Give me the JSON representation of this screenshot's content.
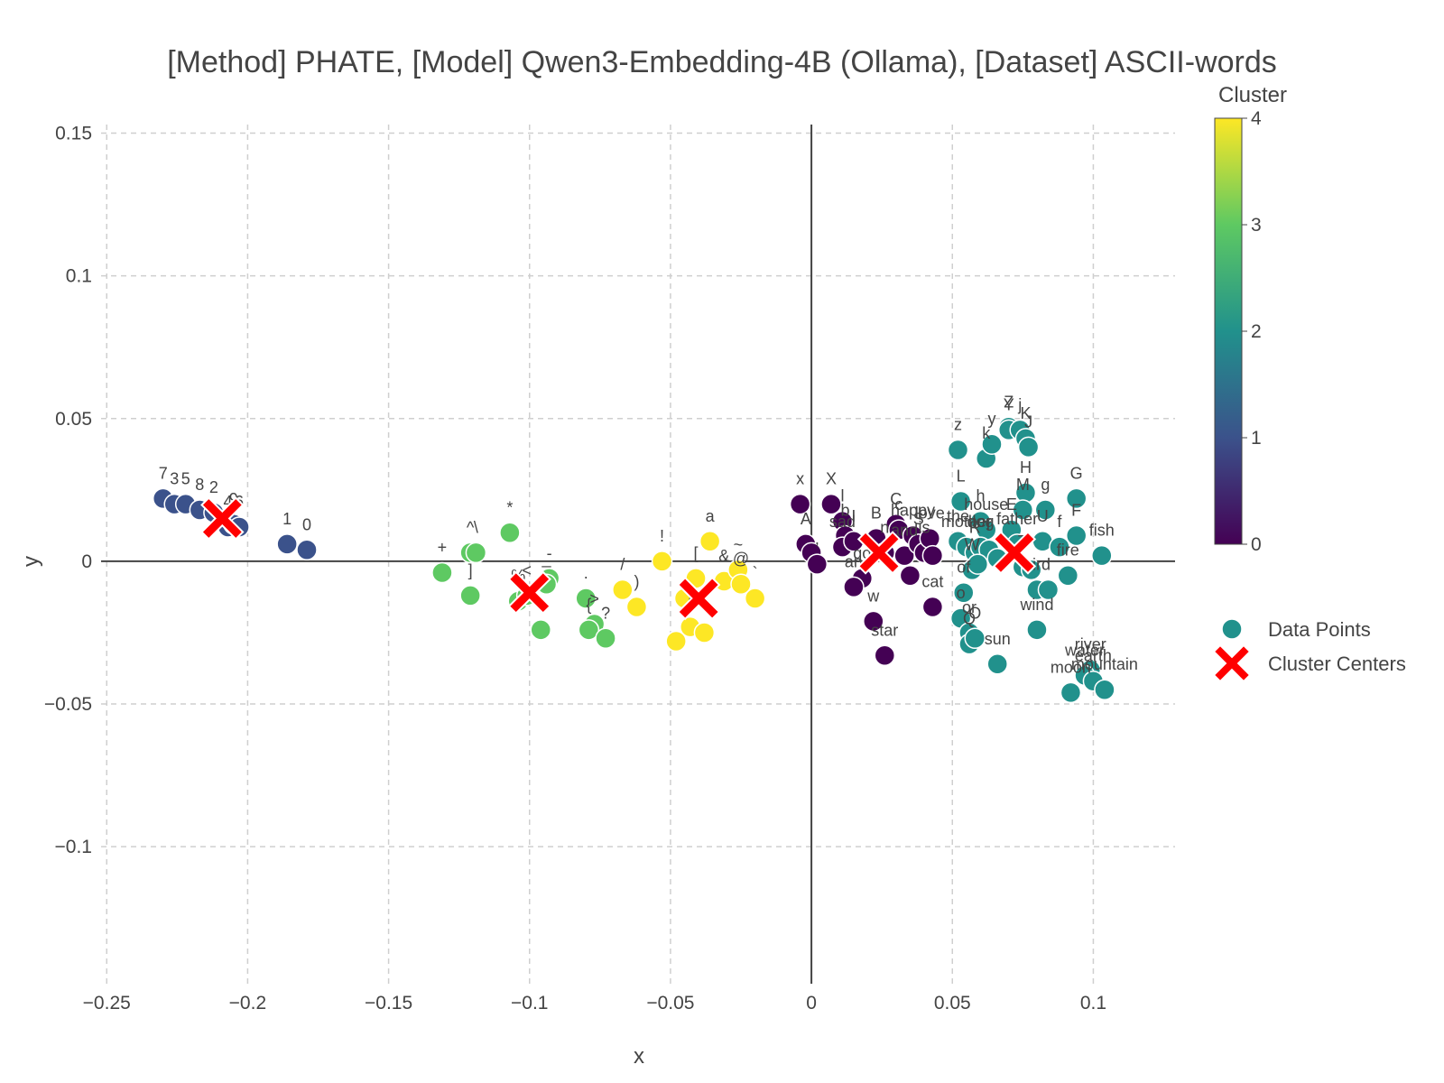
{
  "chart_data": {
    "type": "scatter",
    "title": "[Method] PHATE, [Model] Qwen3-Embedding-4B (Ollama), [Dataset] ASCII-words",
    "xlabel": "x",
    "ylabel": "y",
    "xlim": [
      -0.252,
      0.129
    ],
    "ylim": [
      -0.148,
      0.153
    ],
    "x_ticks": [
      -0.25,
      -0.2,
      -0.15,
      -0.1,
      -0.05,
      0,
      0.05,
      0.1
    ],
    "x_tick_labels": [
      "−0.25",
      "−0.2",
      "−0.15",
      "−0.1",
      "−0.05",
      "0",
      "0.05",
      "0.1"
    ],
    "y_ticks": [
      -0.1,
      -0.05,
      0,
      0.05,
      0.1,
      0.15
    ],
    "y_tick_labels": [
      "−0.1",
      "−0.05",
      "0",
      "0.05",
      "0.1",
      "0.15"
    ],
    "grid": true,
    "colorbar": {
      "title": "Cluster",
      "min": 0,
      "max": 4,
      "ticks": [
        0,
        1,
        2,
        3,
        4
      ]
    },
    "colorscale": [
      "#440154",
      "#3b528b",
      "#21918c",
      "#5ec962",
      "#fde725"
    ],
    "legend": {
      "placement": "right",
      "entries": [
        {
          "name": "Data Points",
          "color": "#21918c",
          "symbol": "circle"
        },
        {
          "name": "Cluster Centers",
          "color": "#ff0000",
          "symbol": "x"
        }
      ]
    },
    "series": [
      {
        "name": "Data Points",
        "points": [
          {
            "x": -0.23,
            "y": 0.022,
            "cluster": 1,
            "label": "7"
          },
          {
            "x": -0.226,
            "y": 0.02,
            "cluster": 1,
            "label": "3"
          },
          {
            "x": -0.222,
            "y": 0.02,
            "cluster": 1,
            "label": "5"
          },
          {
            "x": -0.217,
            "y": 0.018,
            "cluster": 1,
            "label": "8"
          },
          {
            "x": -0.212,
            "y": 0.017,
            "cluster": 1,
            "label": "2"
          },
          {
            "x": -0.207,
            "y": 0.012,
            "cluster": 1,
            "label": "4"
          },
          {
            "x": -0.205,
            "y": 0.013,
            "cluster": 1,
            "label": "9"
          },
          {
            "x": -0.203,
            "y": 0.012,
            "cluster": 1,
            "label": "6"
          },
          {
            "x": -0.186,
            "y": 0.006,
            "cluster": 1,
            "label": "1"
          },
          {
            "x": -0.179,
            "y": 0.004,
            "cluster": 1,
            "label": "0"
          },
          {
            "x": -0.131,
            "y": -0.004,
            "cluster": 3,
            "label": "+"
          },
          {
            "x": -0.121,
            "y": 0.003,
            "cluster": 3,
            "label": "^"
          },
          {
            "x": -0.119,
            "y": 0.003,
            "cluster": 3,
            "label": "\\"
          },
          {
            "x": -0.121,
            "y": -0.012,
            "cluster": 3,
            "label": "]"
          },
          {
            "x": -0.107,
            "y": 0.01,
            "cluster": 3,
            "label": "*"
          },
          {
            "x": -0.104,
            "y": -0.014,
            "cluster": 3,
            "label": "%"
          },
          {
            "x": -0.101,
            "y": -0.012,
            "cluster": 3,
            "label": "<"
          },
          {
            "x": -0.096,
            "y": -0.024,
            "cluster": 3,
            "label": ""
          },
          {
            "x": -0.093,
            "y": -0.006,
            "cluster": 3,
            "label": "-"
          },
          {
            "x": -0.094,
            "y": -0.008,
            "cluster": 3,
            "label": "_"
          },
          {
            "x": -0.08,
            "y": -0.013,
            "cluster": 3,
            "label": "."
          },
          {
            "x": -0.077,
            "y": -0.022,
            "cluster": 3,
            "label": ">"
          },
          {
            "x": -0.079,
            "y": -0.024,
            "cluster": 3,
            "label": "{"
          },
          {
            "x": -0.073,
            "y": -0.027,
            "cluster": 3,
            "label": "?"
          },
          {
            "x": -0.053,
            "y": 0.0,
            "cluster": 4,
            "label": "!"
          },
          {
            "x": -0.067,
            "y": -0.01,
            "cluster": 4,
            "label": "/"
          },
          {
            "x": -0.062,
            "y": -0.016,
            "cluster": 4,
            "label": ")"
          },
          {
            "x": -0.036,
            "y": 0.007,
            "cluster": 4,
            "label": "a"
          },
          {
            "x": -0.041,
            "y": -0.006,
            "cluster": 4,
            "label": "["
          },
          {
            "x": -0.045,
            "y": -0.013,
            "cluster": 4,
            "label": ""
          },
          {
            "x": -0.043,
            "y": -0.023,
            "cluster": 4,
            "label": "("
          },
          {
            "x": -0.048,
            "y": -0.028,
            "cluster": 4,
            "label": ""
          },
          {
            "x": -0.038,
            "y": -0.025,
            "cluster": 4,
            "label": ""
          },
          {
            "x": -0.031,
            "y": -0.007,
            "cluster": 4,
            "label": "&"
          },
          {
            "x": -0.026,
            "y": -0.003,
            "cluster": 4,
            "label": "~"
          },
          {
            "x": -0.025,
            "y": -0.008,
            "cluster": 4,
            "label": "@"
          },
          {
            "x": -0.02,
            "y": -0.013,
            "cluster": 4,
            "label": "`"
          },
          {
            "x": -0.004,
            "y": 0.02,
            "cluster": 0,
            "label": "x"
          },
          {
            "x": -0.002,
            "y": 0.006,
            "cluster": 0,
            "label": "A"
          },
          {
            "x": 0.0,
            "y": 0.003,
            "cluster": 0,
            "label": ""
          },
          {
            "x": 0.002,
            "y": -0.001,
            "cluster": 0,
            "label": ","
          },
          {
            "x": 0.007,
            "y": 0.02,
            "cluster": 0,
            "label": "X"
          },
          {
            "x": 0.011,
            "y": 0.014,
            "cluster": 0,
            "label": "l"
          },
          {
            "x": 0.012,
            "y": 0.009,
            "cluster": 0,
            "label": "b"
          },
          {
            "x": 0.011,
            "y": 0.005,
            "cluster": 0,
            "label": "sad"
          },
          {
            "x": 0.015,
            "y": 0.007,
            "cluster": 0,
            "label": "I"
          },
          {
            "x": 0.018,
            "y": -0.006,
            "cluster": 0,
            "label": "go"
          },
          {
            "x": 0.015,
            "y": -0.009,
            "cluster": 0,
            "label": "an"
          },
          {
            "x": 0.022,
            "y": -0.021,
            "cluster": 0,
            "label": "w"
          },
          {
            "x": 0.026,
            "y": -0.033,
            "cluster": 0,
            "label": "star"
          },
          {
            "x": 0.023,
            "y": 0.008,
            "cluster": 0,
            "label": "B"
          },
          {
            "x": 0.026,
            "y": 0.003,
            "cluster": 0,
            "label": "n"
          },
          {
            "x": 0.03,
            "y": 0.013,
            "cluster": 0,
            "label": "C"
          },
          {
            "x": 0.031,
            "y": 0.011,
            "cluster": 0,
            "label": "c"
          },
          {
            "x": 0.033,
            "y": 0.002,
            "cluster": 0,
            "label": "and"
          },
          {
            "x": 0.035,
            "y": -0.005,
            "cluster": 0,
            "label": ""
          },
          {
            "x": 0.036,
            "y": 0.009,
            "cluster": 0,
            "label": "happy"
          },
          {
            "x": 0.038,
            "y": 0.006,
            "cluster": 0,
            "label": "S"
          },
          {
            "x": 0.04,
            "y": 0.003,
            "cluster": 0,
            "label": "is"
          },
          {
            "x": 0.042,
            "y": 0.008,
            "cluster": 0,
            "label": "love"
          },
          {
            "x": 0.043,
            "y": 0.002,
            "cluster": 0,
            "label": ""
          },
          {
            "x": 0.043,
            "y": -0.016,
            "cluster": 0,
            "label": "cat"
          },
          {
            "x": 0.052,
            "y": 0.039,
            "cluster": 2,
            "label": "z"
          },
          {
            "x": 0.062,
            "y": 0.036,
            "cluster": 2,
            "label": "k"
          },
          {
            "x": 0.064,
            "y": 0.041,
            "cluster": 2,
            "label": "y"
          },
          {
            "x": 0.07,
            "y": 0.047,
            "cluster": 2,
            "label": "Z"
          },
          {
            "x": 0.07,
            "y": 0.046,
            "cluster": 2,
            "label": "Y"
          },
          {
            "x": 0.074,
            "y": 0.046,
            "cluster": 2,
            "label": "j"
          },
          {
            "x": 0.076,
            "y": 0.043,
            "cluster": 2,
            "label": "K"
          },
          {
            "x": 0.077,
            "y": 0.04,
            "cluster": 2,
            "label": "J"
          },
          {
            "x": 0.053,
            "y": 0.021,
            "cluster": 2,
            "label": "L"
          },
          {
            "x": 0.06,
            "y": 0.014,
            "cluster": 2,
            "label": "h"
          },
          {
            "x": 0.062,
            "y": 0.011,
            "cluster": 2,
            "label": "house"
          },
          {
            "x": 0.052,
            "y": 0.007,
            "cluster": 2,
            "label": "the"
          },
          {
            "x": 0.055,
            "y": 0.005,
            "cluster": 2,
            "label": "mother"
          },
          {
            "x": 0.058,
            "y": 0.003,
            "cluster": 2,
            "label": "R"
          },
          {
            "x": 0.06,
            "y": 0.005,
            "cluster": 2,
            "label": "dog"
          },
          {
            "x": 0.063,
            "y": 0.004,
            "cluster": 2,
            "label": "r"
          },
          {
            "x": 0.066,
            "y": 0.001,
            "cluster": 2,
            "label": ""
          },
          {
            "x": 0.057,
            "y": -0.003,
            "cluster": 2,
            "label": "W"
          },
          {
            "x": 0.059,
            "y": -0.001,
            "cluster": 2,
            "label": ""
          },
          {
            "x": 0.054,
            "y": -0.011,
            "cluster": 2,
            "label": "of"
          },
          {
            "x": 0.053,
            "y": -0.02,
            "cluster": 2,
            "label": "o"
          },
          {
            "x": 0.056,
            "y": -0.025,
            "cluster": 2,
            "label": "or"
          },
          {
            "x": 0.056,
            "y": -0.029,
            "cluster": 2,
            "label": "Q"
          },
          {
            "x": 0.058,
            "y": -0.027,
            "cluster": 2,
            "label": "O"
          },
          {
            "x": 0.066,
            "y": -0.036,
            "cluster": 2,
            "label": "sun"
          },
          {
            "x": 0.076,
            "y": 0.024,
            "cluster": 2,
            "label": "H"
          },
          {
            "x": 0.075,
            "y": 0.018,
            "cluster": 2,
            "label": "M"
          },
          {
            "x": 0.083,
            "y": 0.018,
            "cluster": 2,
            "label": "g"
          },
          {
            "x": 0.071,
            "y": 0.011,
            "cluster": 2,
            "label": "E"
          },
          {
            "x": 0.073,
            "y": 0.006,
            "cluster": 2,
            "label": "father"
          },
          {
            "x": 0.082,
            "y": 0.007,
            "cluster": 2,
            "label": "U"
          },
          {
            "x": 0.088,
            "y": 0.005,
            "cluster": 2,
            "label": "f"
          },
          {
            "x": 0.075,
            "y": -0.002,
            "cluster": 2,
            "label": "T"
          },
          {
            "x": 0.078,
            "y": -0.003,
            "cluster": 2,
            "label": ""
          },
          {
            "x": 0.08,
            "y": -0.01,
            "cluster": 2,
            "label": "bird"
          },
          {
            "x": 0.084,
            "y": -0.01,
            "cluster": 2,
            "label": ""
          },
          {
            "x": 0.091,
            "y": -0.005,
            "cluster": 2,
            "label": "fire"
          },
          {
            "x": 0.08,
            "y": -0.024,
            "cluster": 2,
            "label": "wind"
          },
          {
            "x": 0.094,
            "y": 0.022,
            "cluster": 2,
            "label": "G"
          },
          {
            "x": 0.094,
            "y": 0.009,
            "cluster": 2,
            "label": "F"
          },
          {
            "x": 0.103,
            "y": 0.002,
            "cluster": 2,
            "label": "fish"
          },
          {
            "x": 0.099,
            "y": -0.038,
            "cluster": 2,
            "label": "river"
          },
          {
            "x": 0.097,
            "y": -0.04,
            "cluster": 2,
            "label": "water"
          },
          {
            "x": 0.1,
            "y": -0.042,
            "cluster": 2,
            "label": "earth"
          },
          {
            "x": 0.104,
            "y": -0.045,
            "cluster": 2,
            "label": "mountain"
          },
          {
            "x": 0.092,
            "y": -0.046,
            "cluster": 2,
            "label": "moon"
          }
        ]
      },
      {
        "name": "Cluster Centers",
        "points": [
          {
            "x": -0.209,
            "y": 0.015
          },
          {
            "x": -0.1,
            "y": -0.011
          },
          {
            "x": -0.04,
            "y": -0.013
          },
          {
            "x": 0.024,
            "y": 0.003
          },
          {
            "x": 0.072,
            "y": 0.003
          }
        ]
      }
    ]
  }
}
